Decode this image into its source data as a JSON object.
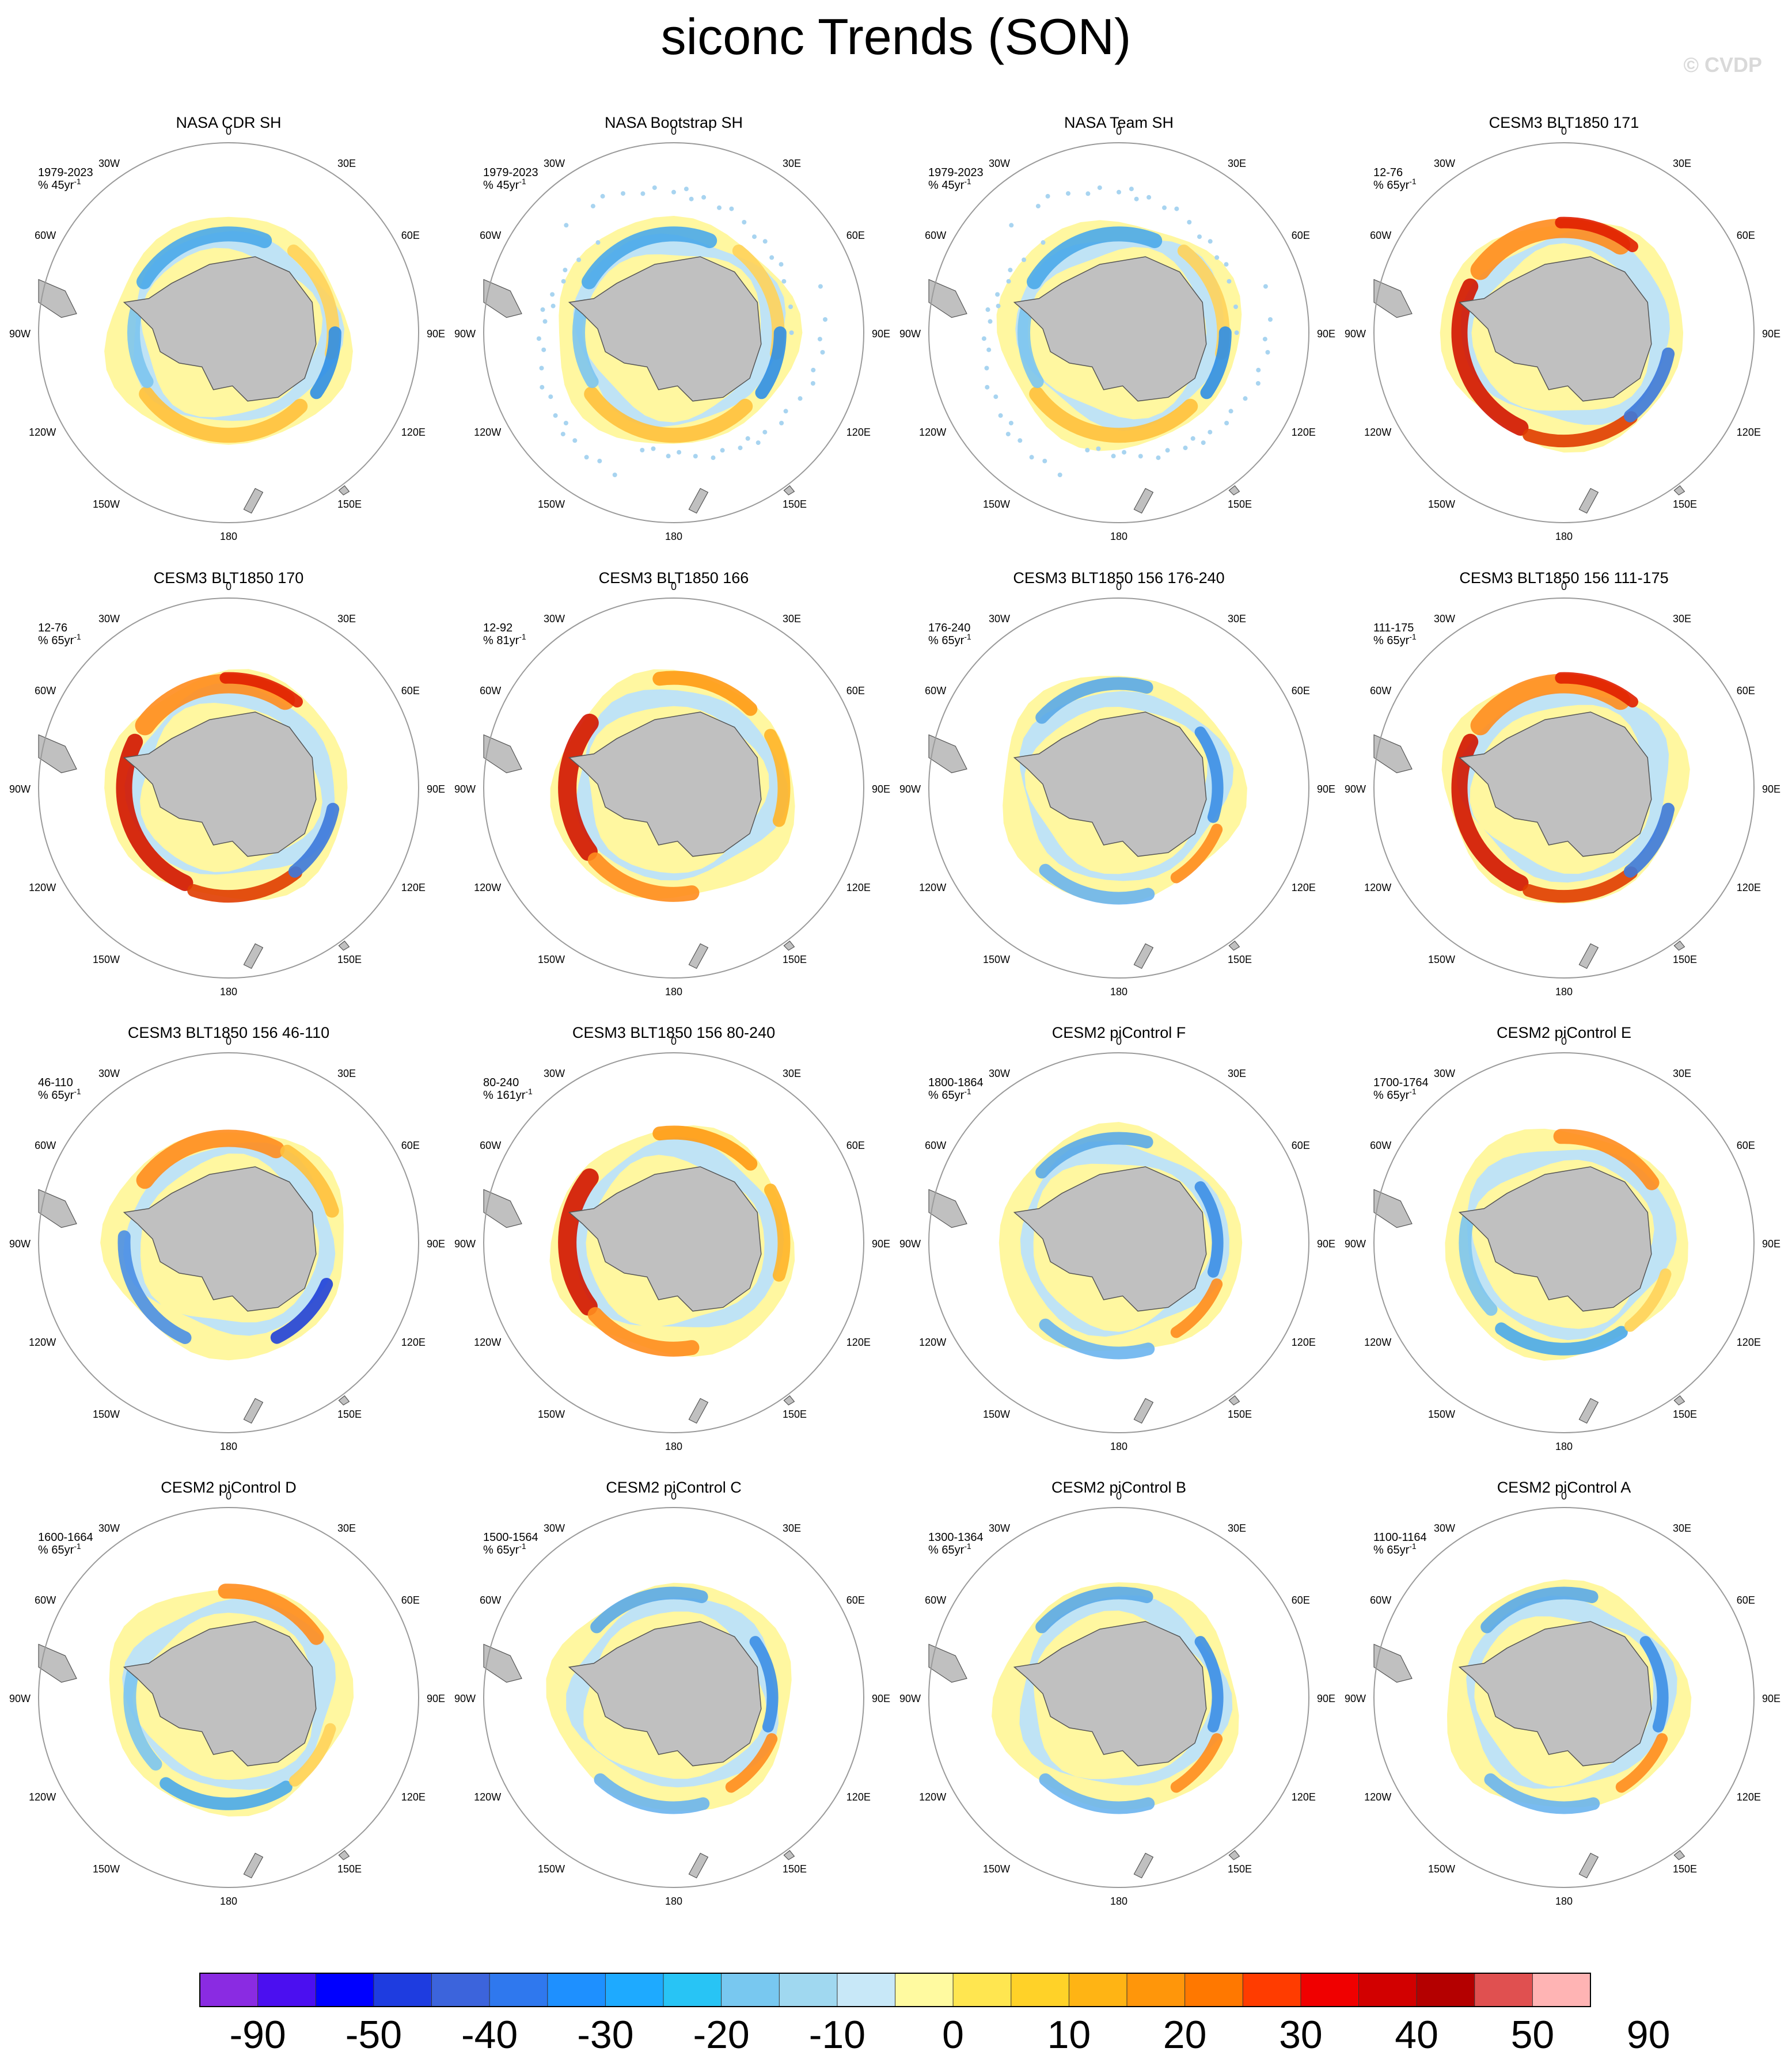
{
  "title": "siconc Trends (SON)",
  "watermark": "© CVDP",
  "lon_labels": {
    "top": "0",
    "bottom": "180",
    "upper_left": "30W",
    "upper_right": "30E",
    "mid_upper_left": "60W",
    "mid_upper_right": "60E",
    "left": "90W",
    "right": "90E",
    "mid_lower_left": "120W",
    "mid_lower_right": "120E",
    "lower_left": "150W",
    "lower_right": "150E"
  },
  "colors": {
    "land": "#c0c0c0",
    "circle": "#9a9a9a",
    "palette": [
      "#8a2be2",
      "#4b0ff0",
      "#0000ff",
      "#1e3ce0",
      "#3c64dc",
      "#2f78ee",
      "#1e90ff",
      "#1eaaff",
      "#28c4f5",
      "#78c8f0",
      "#a0d8f0",
      "#c8e8f8",
      "#fffaa0",
      "#ffe650",
      "#ffd228",
      "#ffb414",
      "#ff960a",
      "#ff7800",
      "#ff3c00",
      "#f00000",
      "#d20000",
      "#b40000",
      "#e05050",
      "#ffb4b4"
    ]
  },
  "colorbar_labels": [
    "-90",
    "-50",
    "-40",
    "-30",
    "-20",
    "-10",
    "0",
    "10",
    "20",
    "30",
    "40",
    "50",
    "90"
  ],
  "panels": [
    {
      "title": "NASA CDR SH",
      "period": "1979-2023",
      "units": "% 45yr",
      "pattern": "obs",
      "dots": false
    },
    {
      "title": "NASA Bootstrap SH",
      "period": "1979-2023",
      "units": "% 45yr",
      "pattern": "obs",
      "dots": true
    },
    {
      "title": "NASA Team SH",
      "period": "1979-2023",
      "units": "% 45yr",
      "pattern": "obs",
      "dots": true
    },
    {
      "title": "CESM3 BLT1850 171",
      "period": "12-76",
      "units": "% 65yr",
      "pattern": "redring",
      "dots": false
    },
    {
      "title": "CESM3 BLT1850 170",
      "period": "12-76",
      "units": "% 65yr",
      "pattern": "redring",
      "dots": false
    },
    {
      "title": "CESM3 BLT1850 166",
      "period": "12-92",
      "units": "% 81yr",
      "pattern": "redwest",
      "dots": false
    },
    {
      "title": "CESM3 BLT1850 156 176-240",
      "period": "176-240",
      "units": "% 65yr",
      "pattern": "blueish",
      "dots": false
    },
    {
      "title": "CESM3 BLT1850 156 111-175",
      "period": "111-175",
      "units": "% 65yr",
      "pattern": "redring",
      "dots": false
    },
    {
      "title": "CESM3 BLT1850 156 46-110",
      "period": "46-110",
      "units": "% 65yr",
      "pattern": "mixed",
      "dots": false
    },
    {
      "title": "CESM3 BLT1850 156 80-240",
      "period": "80-240",
      "units": "% 161yr",
      "pattern": "redwest",
      "dots": false
    },
    {
      "title": "CESM2 piControl F",
      "period": "1800-1864",
      "units": "% 65yr",
      "pattern": "blueish",
      "dots": false
    },
    {
      "title": "CESM2 piControl E",
      "period": "1700-1764",
      "units": "% 65yr",
      "pattern": "mild",
      "dots": false
    },
    {
      "title": "CESM2 piControl D",
      "period": "1600-1664",
      "units": "% 65yr",
      "pattern": "mild",
      "dots": false
    },
    {
      "title": "CESM2 piControl C",
      "period": "1500-1564",
      "units": "% 65yr",
      "pattern": "blueish",
      "dots": false
    },
    {
      "title": "CESM2 piControl B",
      "period": "1300-1364",
      "units": "% 65yr",
      "pattern": "blueish",
      "dots": false
    },
    {
      "title": "CESM2 piControl A",
      "period": "1100-1164",
      "units": "% 65yr",
      "pattern": "blueish",
      "dots": false
    }
  ]
}
